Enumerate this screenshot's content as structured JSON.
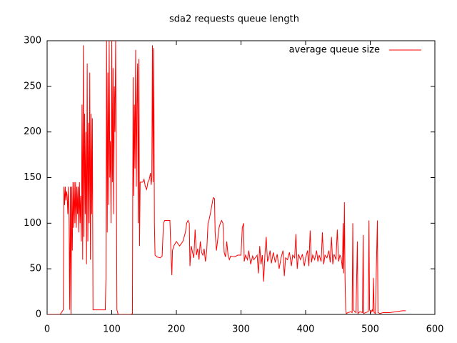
{
  "chart_data": {
    "type": "line",
    "title": "sda2 requests queue length",
    "x": [
      0,
      10,
      20,
      22,
      25,
      26,
      27,
      28,
      29,
      30,
      31,
      32,
      33,
      34,
      35,
      36,
      37,
      38,
      39,
      40,
      41,
      42,
      43,
      44,
      45,
      46,
      47,
      48,
      49,
      50,
      51,
      52,
      53,
      54,
      55,
      56,
      57,
      58,
      59,
      60,
      61,
      62,
      63,
      64,
      65,
      66,
      67,
      68,
      69,
      70,
      71,
      80,
      90,
      91,
      92,
      93,
      94,
      95,
      96,
      97,
      98,
      99,
      100,
      101,
      102,
      103,
      104,
      105,
      106,
      107,
      108,
      110,
      120,
      130,
      132,
      133,
      134,
      135,
      136,
      137,
      138,
      139,
      140,
      141,
      142,
      143,
      144,
      146,
      148,
      150,
      152,
      154,
      156,
      158,
      160,
      161,
      162,
      163,
      164,
      165,
      166,
      167,
      170,
      175,
      178,
      180,
      182,
      190,
      192,
      193,
      194,
      196,
      200,
      205,
      210,
      214,
      216,
      218,
      220,
      221,
      223,
      225,
      227,
      229,
      231,
      233,
      235,
      237,
      239,
      241,
      243,
      245,
      247,
      249,
      251,
      253,
      255,
      257,
      259,
      260,
      262,
      264,
      266,
      268,
      270,
      272,
      274,
      276,
      278,
      280,
      282,
      284,
      290,
      295,
      300,
      302,
      304,
      305,
      307,
      310,
      312,
      315,
      318,
      320,
      325,
      327,
      329,
      331,
      333,
      335,
      337,
      339,
      341,
      343,
      345,
      347,
      350,
      353,
      356,
      359,
      362,
      365,
      367,
      369,
      372,
      375,
      378,
      380,
      383,
      385,
      387,
      389,
      392,
      395,
      398,
      400,
      403,
      405,
      407,
      409,
      411,
      414,
      417,
      419,
      421,
      424,
      426,
      428,
      430,
      433,
      436,
      438,
      440,
      442,
      444,
      447,
      449,
      451,
      453,
      455,
      457,
      458,
      459,
      460,
      461,
      462,
      463,
      466,
      470,
      472,
      473,
      474,
      476,
      478,
      480,
      481,
      484,
      488,
      489,
      490,
      493,
      497,
      498,
      499,
      501,
      503,
      504,
      505,
      506,
      508,
      511,
      512,
      515,
      520,
      530,
      540,
      550,
      555
    ],
    "series": [
      {
        "name": "average queue size",
        "color": "#ff0000",
        "values": [
          0,
          0,
          0,
          2,
          5,
          140,
          120,
          140,
          125,
          135,
          130,
          110,
          140,
          100,
          5,
          140,
          0,
          140,
          70,
          145,
          95,
          145,
          100,
          145,
          95,
          140,
          110,
          140,
          90,
          145,
          100,
          130,
          80,
          230,
          60,
          295,
          85,
          220,
          110,
          200,
          55,
          275,
          80,
          210,
          100,
          265,
          60,
          220,
          110,
          215,
          5,
          5,
          5,
          40,
          300,
          90,
          265,
          120,
          300,
          150,
          190,
          100,
          300,
          145,
          270,
          110,
          250,
          200,
          300,
          180,
          5,
          0,
          0,
          0,
          1,
          260,
          130,
          230,
          160,
          290,
          140,
          230,
          275,
          100,
          280,
          75,
          145,
          145,
          145,
          148,
          140,
          137,
          145,
          148,
          155,
          142,
          150,
          295,
          145,
          292,
          100,
          65,
          63,
          62,
          64,
          100,
          103,
          103,
          60,
          43,
          70,
          75,
          80,
          75,
          80,
          90,
          100,
          103,
          100,
          53,
          75,
          68,
          62,
          93,
          65,
          72,
          60,
          80,
          68,
          65,
          72,
          58,
          70,
          100,
          105,
          112,
          120,
          128,
          127,
          90,
          70,
          82,
          95,
          100,
          103,
          100,
          68,
          63,
          80,
          65,
          60,
          64,
          63,
          65,
          65,
          95,
          100,
          58,
          65,
          60,
          70,
          55,
          64,
          60,
          65,
          45,
          75,
          55,
          65,
          36,
          65,
          85,
          58,
          62,
          70,
          56,
          68,
          57,
          66,
          50,
          62,
          70,
          42,
          62,
          60,
          68,
          53,
          65,
          62,
          88,
          50,
          66,
          60,
          66,
          53,
          62,
          70,
          53,
          92,
          57,
          65,
          60,
          70,
          58,
          65,
          58,
          90,
          55,
          65,
          62,
          70,
          57,
          85,
          55,
          66,
          60,
          93,
          58,
          65,
          62,
          50,
          100,
          45,
          123,
          40,
          5,
          1,
          2,
          3,
          2,
          100,
          5,
          3,
          2,
          80,
          1,
          3,
          2,
          87,
          1,
          2,
          3,
          103,
          5,
          2,
          5,
          3,
          40,
          2,
          1,
          103,
          2,
          1,
          2,
          2,
          3,
          4,
          4
        ]
      }
    ],
    "xlim": [
      0,
      600
    ],
    "xticks": [
      0,
      100,
      200,
      300,
      400,
      500,
      600
    ],
    "ylim": [
      0,
      300
    ],
    "yticks": [
      0,
      50,
      100,
      150,
      200,
      250,
      300
    ],
    "grid": false,
    "legend": "top-right"
  }
}
